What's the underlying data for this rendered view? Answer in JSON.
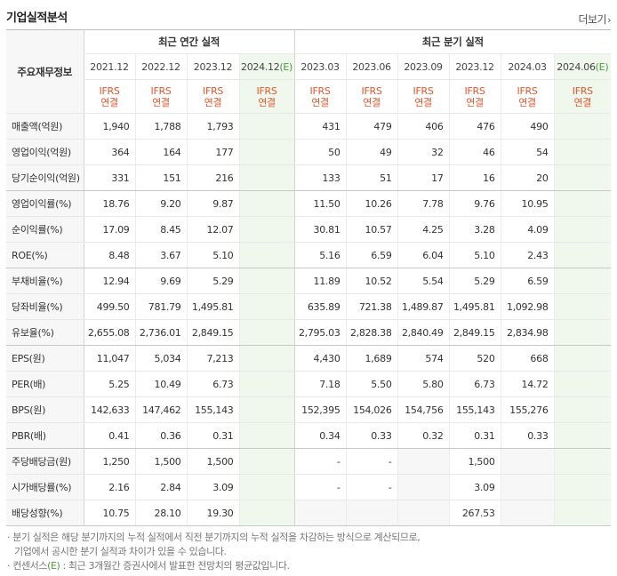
{
  "header": {
    "title": "기업실적분석",
    "more_label": "더보기"
  },
  "table": {
    "row_header_label": "주요재무정보",
    "annual_group_label": "최근 연간 실적",
    "quarter_group_label": "최근 분기 실적",
    "periods": [
      {
        "label": "2021.12",
        "estimate_mark": "",
        "basis1": "IFRS",
        "basis2": "연결"
      },
      {
        "label": "2022.12",
        "estimate_mark": "",
        "basis1": "IFRS",
        "basis2": "연결"
      },
      {
        "label": "2023.12",
        "estimate_mark": "",
        "basis1": "IFRS",
        "basis2": "연결"
      },
      {
        "label": "2024.12",
        "estimate_mark": "(E)",
        "basis1": "IFRS",
        "basis2": "연결"
      },
      {
        "label": "2023.03",
        "estimate_mark": "",
        "basis1": "IFRS",
        "basis2": "연결"
      },
      {
        "label": "2023.06",
        "estimate_mark": "",
        "basis1": "IFRS",
        "basis2": "연결"
      },
      {
        "label": "2023.09",
        "estimate_mark": "",
        "basis1": "IFRS",
        "basis2": "연결"
      },
      {
        "label": "2023.12",
        "estimate_mark": "",
        "basis1": "IFRS",
        "basis2": "연결"
      },
      {
        "label": "2024.03",
        "estimate_mark": "",
        "basis1": "IFRS",
        "basis2": "연결"
      },
      {
        "label": "2024.06",
        "estimate_mark": "(E)",
        "basis1": "IFRS",
        "basis2": "연결"
      }
    ],
    "rows": [
      {
        "label": "매출액(억원)",
        "values": [
          "1,940",
          "1,788",
          "1,793",
          "",
          "431",
          "479",
          "406",
          "476",
          "490",
          ""
        ]
      },
      {
        "label": "영업이익(억원)",
        "values": [
          "364",
          "164",
          "177",
          "",
          "50",
          "49",
          "32",
          "46",
          "54",
          ""
        ]
      },
      {
        "label": "당기순이익(억원)",
        "values": [
          "331",
          "151",
          "216",
          "",
          "133",
          "51",
          "17",
          "16",
          "20",
          ""
        ]
      },
      {
        "label": "영업이익률(%)",
        "values": [
          "18.76",
          "9.20",
          "9.87",
          "",
          "11.50",
          "10.26",
          "7.78",
          "9.76",
          "10.95",
          ""
        ]
      },
      {
        "label": "순이익률(%)",
        "values": [
          "17.09",
          "8.45",
          "12.07",
          "",
          "30.81",
          "10.57",
          "4.25",
          "3.28",
          "4.09",
          ""
        ]
      },
      {
        "label": "ROE(%)",
        "values": [
          "8.48",
          "3.67",
          "5.10",
          "",
          "5.16",
          "6.59",
          "6.04",
          "5.10",
          "2.43",
          ""
        ]
      },
      {
        "label": "부채비율(%)",
        "values": [
          "12.94",
          "9.69",
          "5.29",
          "",
          "11.89",
          "10.52",
          "5.54",
          "5.29",
          "6.59",
          ""
        ]
      },
      {
        "label": "당좌비율(%)",
        "values": [
          "499.50",
          "781.79",
          "1,495.81",
          "",
          "635.89",
          "721.38",
          "1,489.87",
          "1,495.81",
          "1,092.98",
          ""
        ]
      },
      {
        "label": "유보율(%)",
        "values": [
          "2,655.08",
          "2,736.01",
          "2,849.15",
          "",
          "2,795.03",
          "2,828.38",
          "2,840.49",
          "2,849.15",
          "2,834.98",
          ""
        ]
      },
      {
        "label": "EPS(원)",
        "values": [
          "11,047",
          "5,034",
          "7,213",
          "",
          "4,430",
          "1,689",
          "574",
          "520",
          "668",
          ""
        ]
      },
      {
        "label": "PER(배)",
        "values": [
          "5.25",
          "10.49",
          "6.73",
          "",
          "7.18",
          "5.50",
          "5.80",
          "6.73",
          "14.72",
          ""
        ]
      },
      {
        "label": "BPS(원)",
        "values": [
          "142,633",
          "147,462",
          "155,143",
          "",
          "152,395",
          "154,026",
          "154,756",
          "155,143",
          "155,276",
          ""
        ]
      },
      {
        "label": "PBR(배)",
        "values": [
          "0.41",
          "0.36",
          "0.31",
          "",
          "0.34",
          "0.33",
          "0.32",
          "0.31",
          "0.33",
          ""
        ]
      },
      {
        "label": "주당배당금(원)",
        "values": [
          "1,250",
          "1,500",
          "1,500",
          "",
          "-",
          "-",
          "",
          "1,500",
          "",
          ""
        ]
      },
      {
        "label": "시가배당률(%)",
        "values": [
          "2.16",
          "2.84",
          "3.09",
          "",
          "-",
          "-",
          "",
          "3.09",
          "",
          ""
        ]
      },
      {
        "label": "배당성향(%)",
        "values": [
          "10.75",
          "28.10",
          "19.30",
          "",
          "",
          "",
          "",
          "267.53",
          "",
          ""
        ]
      }
    ]
  },
  "notes": {
    "line1": "· 분기 실적은 해당 분기까지의 누적 실적에서 직전 분기까지의 누적 실적을 차감하는 방식으로 계산되므로,",
    "line2": "기업에서 공시한 분기 실적과 차이가 있을 수 있습니다.",
    "line3_prefix": "· 컨센서스",
    "line3_mark": "(E)",
    "line3_suffix": " : 최근 3개월간 증권사에서 발표한 전망치의 평균값입니다."
  },
  "colors": {
    "ifrs_text": "#e4572e",
    "estimate_text": "#4b9a3b",
    "estimate_column_bg": "#f0f8ee"
  }
}
